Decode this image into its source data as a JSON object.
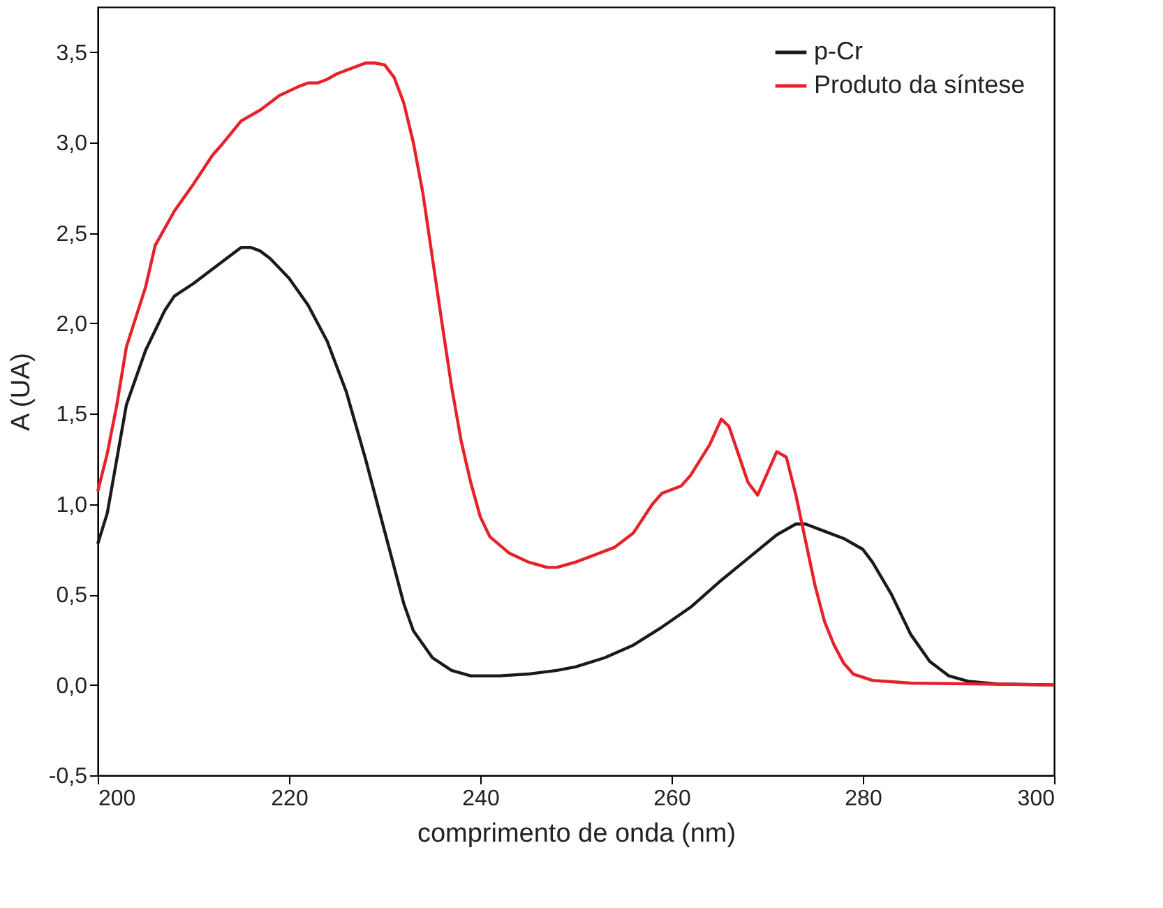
{
  "chart_data": {
    "type": "line",
    "xlabel": "comprimento de onda (nm)",
    "ylabel": "A (UA)",
    "xlim": [
      200,
      300
    ],
    "xticks": [
      200,
      220,
      240,
      260,
      280,
      300
    ],
    "ylim": [
      -0.5,
      3.75
    ],
    "yticks": [
      {
        "value": -0.5,
        "label": "-0,5"
      },
      {
        "value": 0,
        "label": "0,0"
      },
      {
        "value": 0.5,
        "label": "0,5"
      },
      {
        "value": 1,
        "label": "1,0"
      },
      {
        "value": 1.5,
        "label": "1,5"
      },
      {
        "value": 2,
        "label": "2,0"
      },
      {
        "value": 2.5,
        "label": "2,5"
      },
      {
        "value": 3,
        "label": "3,0"
      },
      {
        "value": 3.5,
        "label": "3,5"
      }
    ],
    "grid": false,
    "legend": "top right",
    "marker": "none",
    "line_style": "solid",
    "series": [
      {
        "name": "p-Cr",
        "color": "#1a1a1a",
        "x": [
          200,
          201,
          203,
          205,
          207,
          208,
          210,
          212,
          214,
          215,
          216,
          217,
          218,
          220,
          222,
          224,
          226,
          228,
          230,
          232,
          233,
          235,
          237,
          239,
          242,
          245,
          248,
          250,
          253,
          256,
          259,
          262,
          265,
          268,
          271,
          273,
          274,
          276,
          278,
          280,
          281,
          283,
          285,
          287,
          289,
          291,
          294,
          300
        ],
        "values": [
          0.78,
          0.95,
          1.55,
          1.85,
          2.07,
          2.15,
          2.22,
          2.3,
          2.38,
          2.42,
          2.42,
          2.4,
          2.36,
          2.25,
          2.1,
          1.9,
          1.62,
          1.25,
          0.85,
          0.45,
          0.3,
          0.15,
          0.08,
          0.05,
          0.05,
          0.06,
          0.08,
          0.1,
          0.15,
          0.22,
          0.32,
          0.43,
          0.57,
          0.7,
          0.83,
          0.89,
          0.89,
          0.85,
          0.81,
          0.75,
          0.68,
          0.5,
          0.28,
          0.13,
          0.05,
          0.02,
          0.005,
          0
        ]
      },
      {
        "name": "Produto da síntese",
        "color": "#e8202a",
        "x": [
          200,
          201,
          202,
          203,
          205,
          206,
          208,
          210,
          212,
          213,
          215,
          217,
          219,
          221,
          222,
          223,
          224,
          225,
          227,
          228,
          229,
          230,
          231,
          232,
          233,
          234,
          235,
          236,
          237,
          238,
          239,
          240,
          241,
          243,
          245,
          247,
          248,
          250,
          252,
          254,
          256,
          258,
          259,
          261,
          262,
          264,
          265.2,
          266,
          268,
          269,
          271,
          272,
          273,
          274,
          275,
          276,
          277,
          278,
          279,
          281,
          285,
          300
        ],
        "values": [
          1.07,
          1.28,
          1.55,
          1.87,
          2.2,
          2.43,
          2.62,
          2.77,
          2.93,
          2.99,
          3.12,
          3.18,
          3.26,
          3.31,
          3.33,
          3.33,
          3.35,
          3.38,
          3.42,
          3.44,
          3.44,
          3.43,
          3.36,
          3.22,
          3.0,
          2.72,
          2.36,
          2.0,
          1.65,
          1.35,
          1.12,
          0.93,
          0.82,
          0.73,
          0.68,
          0.65,
          0.65,
          0.68,
          0.72,
          0.76,
          0.84,
          1.0,
          1.06,
          1.1,
          1.16,
          1.33,
          1.47,
          1.43,
          1.12,
          1.05,
          1.29,
          1.26,
          1.05,
          0.8,
          0.55,
          0.35,
          0.22,
          0.12,
          0.06,
          0.025,
          0.01,
          0
        ]
      }
    ]
  }
}
